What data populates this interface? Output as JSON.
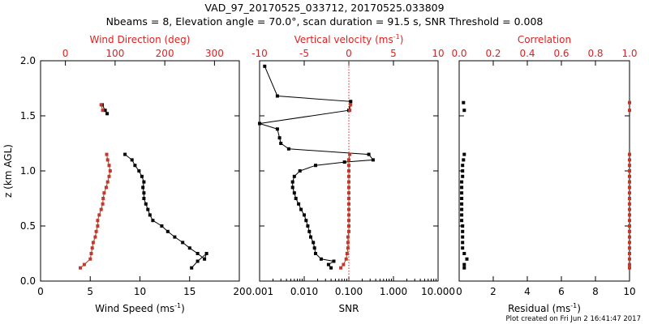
{
  "header": {
    "title": "VAD_97_20170525_033712, 20170525.033809",
    "subtitle": "Nbeams = 8, Elevation angle = 70.0°, scan duration = 91.5 s, SNR Threshold = 0.008"
  },
  "footer": {
    "created": "Plot created on Fri Jun  2 16:41:47 2017"
  },
  "colors": {
    "black": "#000000",
    "red": "#c0392b",
    "redText": "#e02020"
  },
  "chart_data": [
    {
      "type": "line",
      "panel": "wind",
      "ylabel": "z (km AGL)",
      "ylim": [
        0,
        2.0
      ],
      "yticks": [
        "0.0",
        "0.5",
        "1.0",
        "1.5",
        "2.0"
      ],
      "xlabel_bottom": "Wind Speed (ms",
      "xlabel_bottom_sup": "-1",
      "xlabel_bottom_end": ")",
      "xlim_bottom": [
        0,
        20
      ],
      "xticks_bottom": [
        "0",
        "5",
        "10",
        "15",
        "20"
      ],
      "xlabel_top": "Wind Direction (deg)",
      "xlim_top": [
        -50,
        350
      ],
      "xticks_top": [
        "0",
        "100",
        "200",
        "300"
      ],
      "series": [
        {
          "axis": "bottom",
          "color": "#000000",
          "segments": [
            [
              [
                8.5,
                1.15
              ],
              [
                9.2,
                1.1
              ],
              [
                9.5,
                1.05
              ],
              [
                9.9,
                1.0
              ],
              [
                10.2,
                0.95
              ],
              [
                10.4,
                0.9
              ],
              [
                10.3,
                0.85
              ],
              [
                10.4,
                0.8
              ],
              [
                10.4,
                0.75
              ],
              [
                10.6,
                0.7
              ],
              [
                10.8,
                0.65
              ],
              [
                11.0,
                0.6
              ],
              [
                11.3,
                0.55
              ],
              [
                12.2,
                0.5
              ],
              [
                12.8,
                0.45
              ],
              [
                13.5,
                0.4
              ],
              [
                14.3,
                0.35
              ],
              [
                15.0,
                0.3
              ],
              [
                15.8,
                0.25
              ],
              [
                16.5,
                0.2
              ],
              [
                16.7,
                0.25
              ],
              [
                15.8,
                0.18
              ],
              [
                15.2,
                0.12
              ]
            ],
            [
              [
                6.2,
                1.6
              ],
              [
                6.5,
                1.55
              ],
              [
                6.7,
                1.52
              ]
            ]
          ]
        },
        {
          "axis": "top",
          "color": "#c0392b",
          "segments": [
            [
              [
                83,
                1.15
              ],
              [
                85,
                1.1
              ],
              [
                88,
                1.05
              ],
              [
                90,
                1.0
              ],
              [
                88,
                0.95
              ],
              [
                85,
                0.9
              ],
              [
                82,
                0.85
              ],
              [
                78,
                0.8
              ],
              [
                76,
                0.75
              ],
              [
                75,
                0.7
              ],
              [
                72,
                0.65
              ],
              [
                68,
                0.6
              ],
              [
                65,
                0.55
              ],
              [
                65,
                0.5
              ],
              [
                62,
                0.45
              ],
              [
                60,
                0.4
              ],
              [
                56,
                0.35
              ],
              [
                54,
                0.3
              ],
              [
                52,
                0.25
              ],
              [
                50,
                0.2
              ],
              [
                38,
                0.15
              ],
              [
                30,
                0.12
              ]
            ],
            [
              [
                72,
                1.6
              ],
              [
                75,
                1.55
              ]
            ]
          ]
        }
      ]
    },
    {
      "type": "line",
      "panel": "snr",
      "xscale": "log",
      "xlabel_bottom": "SNR",
      "xlim_bottom": [
        0.001,
        10.0
      ],
      "xticks_bottom": [
        "0.001",
        "0.010",
        "0.100",
        "1.000",
        "10.000"
      ],
      "xlabel_top": "Vertical velocity (ms",
      "xlabel_top_sup": "-1",
      "xlabel_top_end": ")",
      "xlim_top": [
        -10,
        10
      ],
      "xticks_top": [
        "-10",
        "-5",
        "0",
        "5",
        "10"
      ],
      "reference_line_top": 0,
      "series": [
        {
          "axis": "bottom",
          "color": "#000000",
          "points": [
            [
              0.0013,
              1.95
            ],
            [
              0.0025,
              1.68
            ],
            [
              0.11,
              1.63
            ],
            [
              0.1,
              1.55
            ],
            [
              0.001,
              1.43
            ],
            [
              0.0025,
              1.38
            ],
            [
              0.0028,
              1.3
            ],
            [
              0.003,
              1.25
            ],
            [
              0.0045,
              1.2
            ],
            [
              0.28,
              1.15
            ],
            [
              0.35,
              1.1
            ],
            [
              0.08,
              1.08
            ],
            [
              0.018,
              1.05
            ],
            [
              0.008,
              1.0
            ],
            [
              0.006,
              0.95
            ],
            [
              0.0055,
              0.9
            ],
            [
              0.0055,
              0.85
            ],
            [
              0.006,
              0.8
            ],
            [
              0.0065,
              0.75
            ],
            [
              0.0075,
              0.7
            ],
            [
              0.0085,
              0.65
            ],
            [
              0.01,
              0.6
            ],
            [
              0.011,
              0.55
            ],
            [
              0.012,
              0.5
            ],
            [
              0.013,
              0.45
            ],
            [
              0.014,
              0.4
            ],
            [
              0.016,
              0.35
            ],
            [
              0.017,
              0.3
            ],
            [
              0.018,
              0.25
            ],
            [
              0.024,
              0.2
            ],
            [
              0.046,
              0.18
            ],
            [
              0.035,
              0.15
            ],
            [
              0.04,
              0.12
            ]
          ]
        },
        {
          "axis": "top",
          "color": "#c0392b",
          "segments": [
            [
              [
                0.1,
                1.15
              ],
              [
                0.0,
                1.1
              ],
              [
                0.0,
                1.05
              ],
              [
                0.0,
                1.0
              ],
              [
                0.0,
                0.95
              ],
              [
                0.0,
                0.9
              ],
              [
                0.0,
                0.85
              ],
              [
                0.0,
                0.8
              ],
              [
                0.0,
                0.75
              ],
              [
                0.0,
                0.7
              ],
              [
                0.0,
                0.65
              ],
              [
                0.0,
                0.6
              ],
              [
                0.0,
                0.55
              ],
              [
                0.0,
                0.5
              ],
              [
                0.0,
                0.45
              ],
              [
                -0.1,
                0.4
              ],
              [
                -0.1,
                0.35
              ],
              [
                -0.1,
                0.3
              ],
              [
                -0.2,
                0.25
              ],
              [
                -0.3,
                0.2
              ],
              [
                -0.6,
                0.15
              ],
              [
                -0.9,
                0.12
              ]
            ],
            [
              [
                0.2,
                1.6
              ],
              [
                0.1,
                1.55
              ]
            ]
          ]
        }
      ]
    },
    {
      "type": "scatter",
      "panel": "residual",
      "xlabel_bottom": "Residual (ms",
      "xlabel_bottom_sup": "-1",
      "xlabel_bottom_end": ")",
      "xlim_bottom": [
        0,
        10
      ],
      "xticks_bottom": [
        "0",
        "2",
        "4",
        "6",
        "8",
        "10"
      ],
      "xlabel_top": "Correlation",
      "xlim_top": [
        0,
        1.0
      ],
      "xticks_top": [
        "0.0",
        "0.2",
        "0.4",
        "0.6",
        "0.8",
        "1.0"
      ],
      "series": [
        {
          "axis": "bottom",
          "color": "#000000",
          "points": [
            [
              0.25,
              1.62
            ],
            [
              0.3,
              1.55
            ],
            [
              0.3,
              1.15
            ],
            [
              0.25,
              1.1
            ],
            [
              0.2,
              1.05
            ],
            [
              0.2,
              1.0
            ],
            [
              0.2,
              0.95
            ],
            [
              0.15,
              0.9
            ],
            [
              0.15,
              0.85
            ],
            [
              0.15,
              0.8
            ],
            [
              0.15,
              0.75
            ],
            [
              0.15,
              0.7
            ],
            [
              0.15,
              0.65
            ],
            [
              0.15,
              0.6
            ],
            [
              0.15,
              0.55
            ],
            [
              0.2,
              0.5
            ],
            [
              0.2,
              0.45
            ],
            [
              0.2,
              0.4
            ],
            [
              0.2,
              0.35
            ],
            [
              0.2,
              0.3
            ],
            [
              0.3,
              0.25
            ],
            [
              0.45,
              0.2
            ],
            [
              0.3,
              0.15
            ],
            [
              0.3,
              0.12
            ]
          ]
        },
        {
          "axis": "top",
          "color": "#c0392b",
          "points": [
            [
              1.0,
              1.62
            ],
            [
              1.0,
              1.55
            ],
            [
              1.0,
              1.15
            ],
            [
              1.0,
              1.1
            ],
            [
              1.0,
              1.05
            ],
            [
              1.0,
              1.0
            ],
            [
              1.0,
              0.95
            ],
            [
              1.0,
              0.9
            ],
            [
              1.0,
              0.85
            ],
            [
              1.0,
              0.8
            ],
            [
              1.0,
              0.75
            ],
            [
              1.0,
              0.7
            ],
            [
              1.0,
              0.65
            ],
            [
              1.0,
              0.6
            ],
            [
              1.0,
              0.55
            ],
            [
              1.0,
              0.5
            ],
            [
              1.0,
              0.45
            ],
            [
              1.0,
              0.4
            ],
            [
              1.0,
              0.35
            ],
            [
              1.0,
              0.3
            ],
            [
              1.0,
              0.25
            ],
            [
              1.0,
              0.2
            ],
            [
              1.0,
              0.15
            ],
            [
              1.0,
              0.12
            ]
          ]
        }
      ]
    }
  ]
}
